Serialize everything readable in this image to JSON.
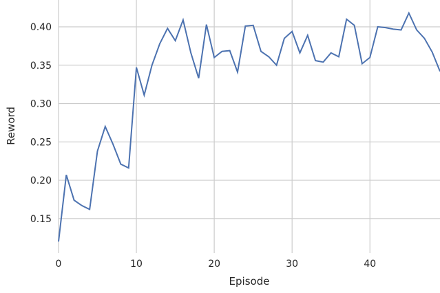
{
  "chart_data": {
    "type": "line",
    "xlabel": "Episode",
    "ylabel": "Reword",
    "xlim": [
      0,
      49
    ],
    "ylim": [
      0.105,
      0.435
    ],
    "xticks": [
      0,
      10,
      20,
      30,
      40
    ],
    "xtick_labels": [
      "0",
      "10",
      "20",
      "30",
      "40"
    ],
    "yticks": [
      0.15,
      0.2,
      0.25,
      0.3,
      0.35,
      0.4
    ],
    "ytick_labels": [
      "0.15",
      "0.20",
      "0.25",
      "0.30",
      "0.35",
      "0.40"
    ],
    "grid": true,
    "line_color": "#4c72b0",
    "grid_color": "#cccccc",
    "series": [
      {
        "x": [
          0,
          1,
          2,
          3,
          4,
          5,
          6,
          7,
          8,
          9,
          10,
          11,
          12,
          13,
          14,
          15,
          16,
          17,
          18,
          19,
          20,
          21,
          22,
          23,
          24,
          25,
          26,
          27,
          28,
          29,
          30,
          31,
          32,
          33,
          34,
          35,
          36,
          37,
          38,
          39,
          40,
          41,
          42,
          43,
          44,
          45,
          46,
          47,
          48,
          49
        ],
        "values": [
          0.12,
          0.207,
          0.174,
          0.167,
          0.162,
          0.238,
          0.27,
          0.247,
          0.221,
          0.216,
          0.347,
          0.311,
          0.35,
          0.378,
          0.398,
          0.382,
          0.409,
          0.366,
          0.333,
          0.403,
          0.36,
          0.368,
          0.369,
          0.341,
          0.401,
          0.402,
          0.368,
          0.361,
          0.35,
          0.385,
          0.394,
          0.366,
          0.389,
          0.356,
          0.354,
          0.366,
          0.361,
          0.41,
          0.402,
          0.352,
          0.36,
          0.4,
          0.399,
          0.397,
          0.396,
          0.418,
          0.396,
          0.385,
          0.367,
          0.342
        ]
      }
    ]
  }
}
